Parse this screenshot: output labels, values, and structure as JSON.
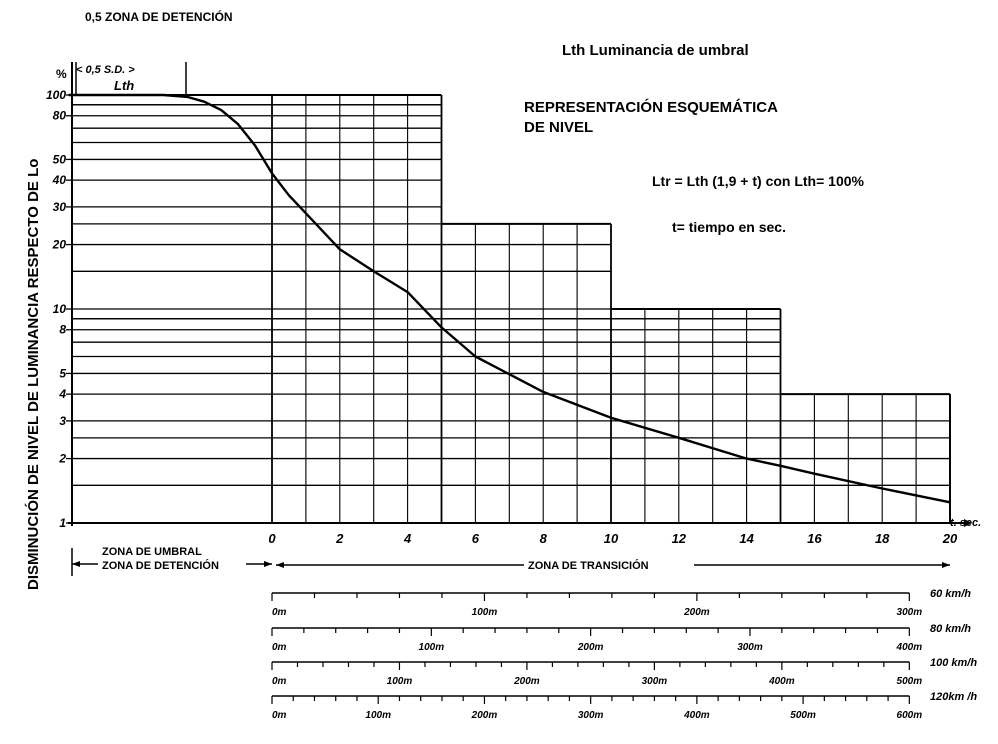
{
  "header_note": "0,5 ZONA DE DETENCIÓN",
  "ylabel": "DISMINUCIÓN DE NIVEL DE LUMINANCIA RESPECTO DE Lo",
  "yunit": "%",
  "zone_marker": "< 0,5  S.D. >",
  "lth_label": "Lth",
  "legend_lth": "Lth  Luminancia de umbral",
  "subtitle_line1": "REPRESENTACIÓN ESQUEMÁTICA",
  "subtitle_line2": "DE NIVEL",
  "formula": "Ltr = Lth (1,9 + t) con Lth= 100%",
  "time_note": "t= tiempo en sec.",
  "xunit": "t. sec.",
  "zone_threshold_1": "ZONA DE UMBRAL",
  "zone_threshold_2": "ZONA DE DETENCIÓN",
  "zone_transition": "ZONA DE TRANSICIÓN",
  "chart_data": {
    "type": "line",
    "y_scale": "log",
    "ylim": [
      1,
      100
    ],
    "xlim": [
      -6,
      20
    ],
    "y_ticks": [
      {
        "v": 100,
        "label": "100"
      },
      {
        "v": 80,
        "label": "80"
      },
      {
        "v": 50,
        "label": "50"
      },
      {
        "v": 40,
        "label": "40"
      },
      {
        "v": 30,
        "label": "30"
      },
      {
        "v": 20,
        "label": "20"
      },
      {
        "v": 10,
        "label": "10"
      },
      {
        "v": 8,
        "label": "8"
      },
      {
        "v": 5,
        "label": "5"
      },
      {
        "v": 4,
        "label": "4"
      },
      {
        "v": 3,
        "label": "3"
      },
      {
        "v": 2,
        "label": "2"
      },
      {
        "v": 1,
        "label": "1"
      }
    ],
    "x_ticks": [
      {
        "v": 0,
        "label": "0"
      },
      {
        "v": 2,
        "label": "2"
      },
      {
        "v": 4,
        "label": "4"
      },
      {
        "v": 6,
        "label": "6"
      },
      {
        "v": 8,
        "label": "8"
      },
      {
        "v": 10,
        "label": "10"
      },
      {
        "v": 12,
        "label": "12"
      },
      {
        "v": 14,
        "label": "14"
      },
      {
        "v": 16,
        "label": "16"
      },
      {
        "v": 18,
        "label": "18"
      },
      {
        "v": 20,
        "label": "20"
      }
    ],
    "series": [
      {
        "x": [
          -6,
          -3.2,
          -2.5,
          -2,
          -1.5,
          -1,
          -0.5,
          0,
          0.5,
          1,
          2,
          3,
          4,
          5,
          6,
          8,
          10,
          12,
          14,
          15,
          16,
          18,
          20
        ],
        "y": [
          100,
          100,
          98,
          93,
          85,
          73,
          58,
          43,
          34,
          28,
          19,
          15,
          12,
          8.2,
          6,
          4.1,
          3.1,
          2.5,
          2,
          1.85,
          1.7,
          1.45,
          1.25
        ]
      }
    ],
    "steps": [
      {
        "x": [
          0,
          5
        ],
        "y": 100
      },
      {
        "x": [
          5,
          10
        ],
        "y": 25
      },
      {
        "x": [
          10,
          15
        ],
        "y": 10
      },
      {
        "x": [
          15,
          20
        ],
        "y": 4
      }
    ]
  },
  "distance_scales": [
    {
      "speed": "60 km/h",
      "max": 300,
      "labels": [
        {
          "v": 0,
          "t": "0m"
        },
        {
          "v": 100,
          "t": "100m"
        },
        {
          "v": 200,
          "t": "200m"
        },
        {
          "v": 300,
          "t": "300m"
        }
      ]
    },
    {
      "speed": "80 km/h",
      "max": 400,
      "labels": [
        {
          "v": 0,
          "t": "0m"
        },
        {
          "v": 100,
          "t": "100m"
        },
        {
          "v": 200,
          "t": "200m"
        },
        {
          "v": 300,
          "t": "300m"
        },
        {
          "v": 400,
          "t": "400m"
        }
      ]
    },
    {
      "speed": "100 km/h",
      "max": 500,
      "labels": [
        {
          "v": 0,
          "t": "0m"
        },
        {
          "v": 100,
          "t": "100m"
        },
        {
          "v": 200,
          "t": "200m"
        },
        {
          "v": 300,
          "t": "300m"
        },
        {
          "v": 400,
          "t": "400m"
        },
        {
          "v": 500,
          "t": "500m"
        }
      ]
    },
    {
      "speed": "120km /h",
      "max": 600,
      "labels": [
        {
          "v": 0,
          "t": "0m"
        },
        {
          "v": 100,
          "t": "100m"
        },
        {
          "v": 200,
          "t": "200m"
        },
        {
          "v": 300,
          "t": "300m"
        },
        {
          "v": 400,
          "t": "400m"
        },
        {
          "v": 500,
          "t": "500m"
        },
        {
          "v": 600,
          "t": "600m"
        }
      ]
    }
  ]
}
